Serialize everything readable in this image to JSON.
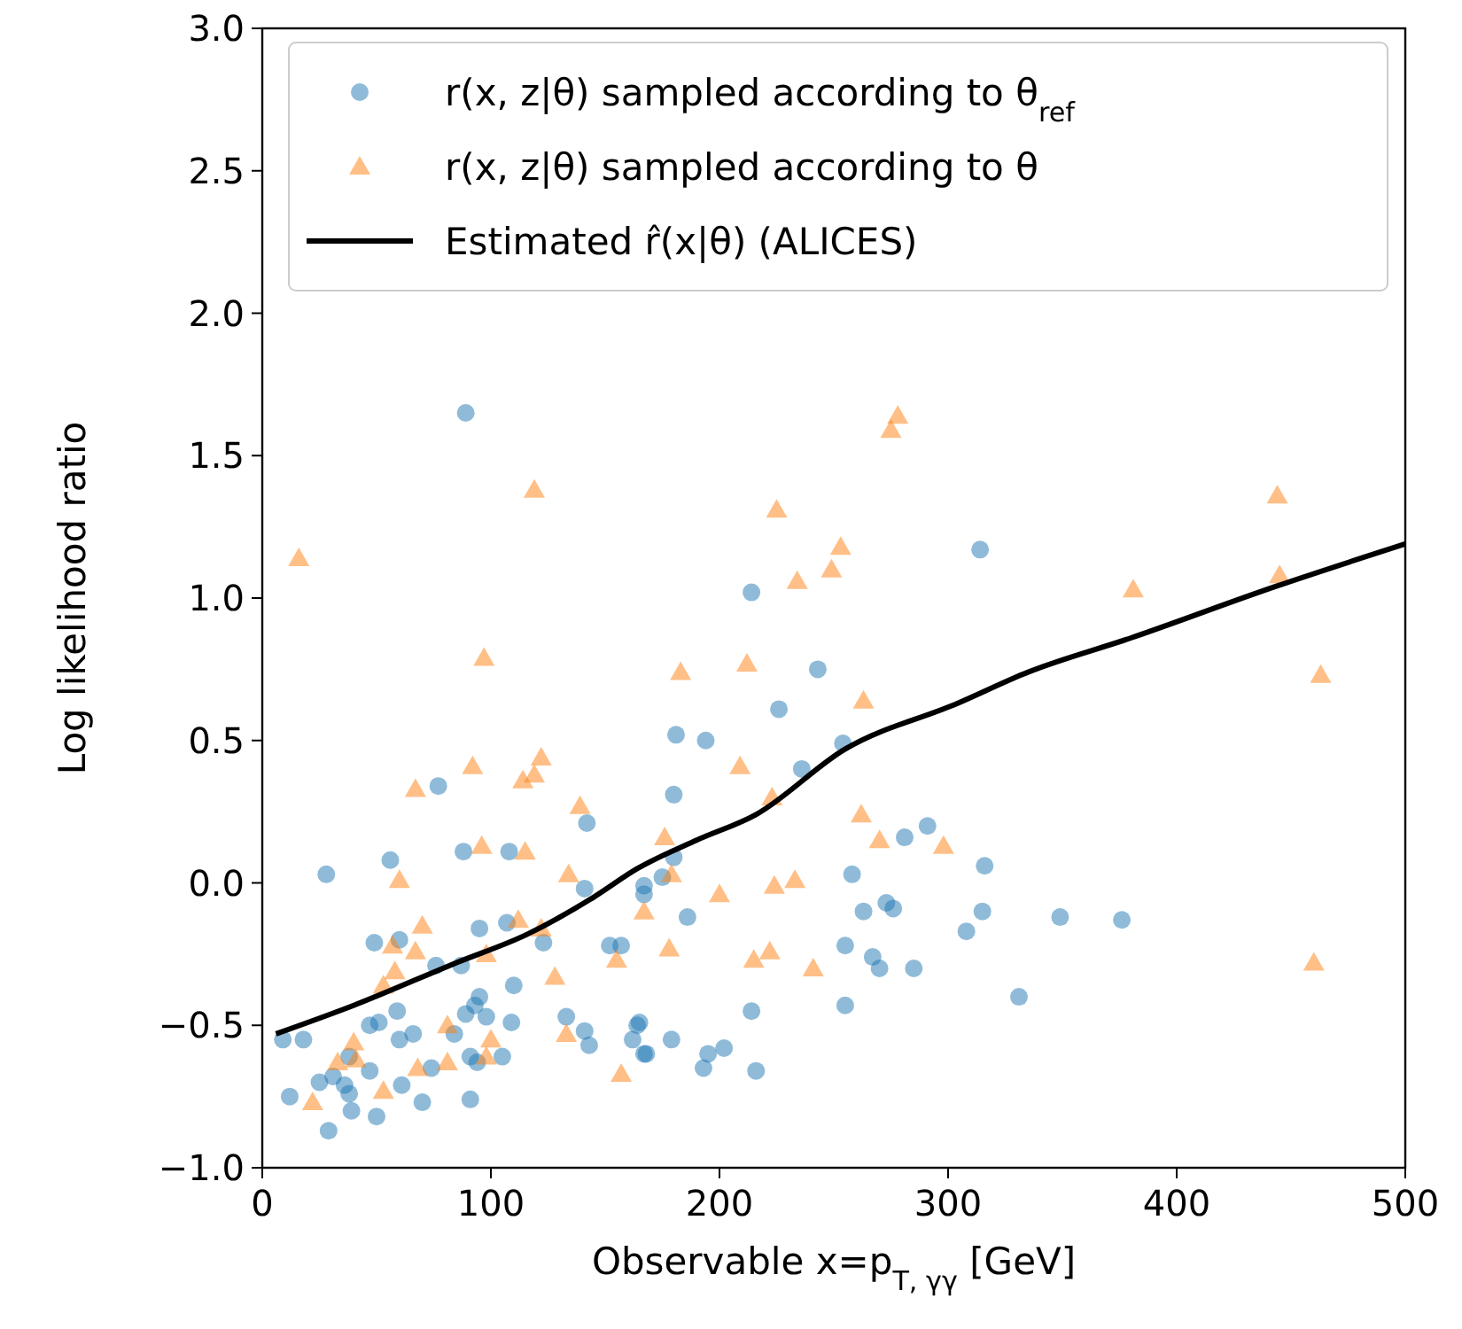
{
  "chart_data": {
    "type": "scatter",
    "xlabel": "Observable x=p$_{T, γγ}$  [GeV]",
    "ylabel": "Log likelihood ratio",
    "xlim": [
      0,
      500
    ],
    "ylim": [
      -1,
      3
    ],
    "xticks": [
      0,
      100,
      200,
      300,
      400,
      500
    ],
    "yticks": [
      {
        "value": -1,
        "label": "−1.0"
      },
      {
        "value": -0.5,
        "label": "−0.5"
      },
      {
        "value": 0,
        "label": "0.0"
      },
      {
        "value": 0.5,
        "label": "0.5"
      },
      {
        "value": 1,
        "label": "1.0"
      },
      {
        "value": 1.5,
        "label": "1.5"
      },
      {
        "value": 2,
        "label": "2.0"
      },
      {
        "value": 2.5,
        "label": "2.5"
      },
      {
        "value": 3,
        "label": "3.0"
      }
    ],
    "legend": "top left",
    "grid": false,
    "series": [
      {
        "name": "r(x, z|θ) sampled according to θ$_{ref}$",
        "color": "#1f77b4",
        "marker": "circle",
        "x": [
          89,
          77,
          142,
          56,
          28,
          88,
          108,
          141,
          49,
          60,
          95,
          107,
          123,
          152,
          157,
          76,
          87,
          110,
          95,
          93,
          89,
          98,
          109,
          133,
          47,
          51,
          59,
          84,
          9,
          18,
          66,
          60,
          141,
          143,
          164,
          162,
          167,
          91,
          94,
          105,
          74,
          38,
          47,
          31,
          25,
          36,
          38,
          61,
          12,
          70,
          91,
          39,
          50,
          29,
          214,
          314,
          243,
          226,
          181,
          194,
          254,
          236,
          180,
          180,
          175,
          167,
          167,
          186,
          281,
          291,
          316,
          258,
          263,
          273,
          276,
          315,
          308,
          255,
          267,
          270,
          285,
          331,
          214,
          255,
          165,
          179,
          168,
          195,
          202,
          193,
          216,
          349,
          376
        ],
        "values": [
          1.65,
          0.34,
          0.21,
          0.08,
          0.03,
          0.11,
          0.11,
          -0.02,
          -0.21,
          -0.2,
          -0.16,
          -0.14,
          -0.21,
          -0.22,
          -0.22,
          -0.29,
          -0.29,
          -0.36,
          -0.4,
          -0.43,
          -0.46,
          -0.47,
          -0.49,
          -0.47,
          -0.5,
          -0.49,
          -0.45,
          -0.53,
          -0.55,
          -0.55,
          -0.53,
          -0.55,
          -0.52,
          -0.57,
          -0.5,
          -0.55,
          -0.6,
          -0.61,
          -0.63,
          -0.61,
          -0.65,
          -0.61,
          -0.66,
          -0.68,
          -0.7,
          -0.71,
          -0.74,
          -0.71,
          -0.75,
          -0.77,
          -0.76,
          -0.8,
          -0.82,
          -0.87,
          1.02,
          1.17,
          0.75,
          0.61,
          0.52,
          0.5,
          0.49,
          0.4,
          0.31,
          0.09,
          0.02,
          -0.01,
          -0.04,
          -0.12,
          0.16,
          0.2,
          0.06,
          0.03,
          -0.1,
          -0.07,
          -0.09,
          -0.1,
          -0.17,
          -0.22,
          -0.26,
          -0.3,
          -0.3,
          -0.4,
          -0.45,
          -0.43,
          -0.49,
          -0.55,
          -0.6,
          -0.6,
          -0.58,
          -0.65,
          -0.66,
          -0.12,
          -0.13
        ]
      },
      {
        "name": "r(x, z|θ) sampled according to θ",
        "color": "#ff7f0e",
        "marker": "triangle",
        "x": [
          119,
          16,
          97,
          92,
          67,
          122,
          119,
          114,
          139,
          96,
          115,
          60,
          134,
          112,
          70,
          122,
          57,
          67,
          58,
          53,
          98,
          128,
          155,
          167,
          81,
          100,
          81,
          40,
          98,
          133,
          157,
          68,
          53,
          22,
          33,
          41,
          278,
          275,
          225,
          253,
          249,
          234,
          183,
          212,
          263,
          209,
          223,
          176,
          262,
          270,
          298,
          179,
          200,
          224,
          233,
          178,
          215,
          222,
          241,
          444,
          445,
          381,
          463,
          460
        ],
        "values": [
          1.38,
          1.14,
          0.79,
          0.41,
          0.33,
          0.44,
          0.38,
          0.36,
          0.27,
          0.13,
          0.11,
          0.01,
          0.03,
          -0.13,
          -0.15,
          -0.16,
          -0.22,
          -0.24,
          -0.31,
          -0.36,
          -0.25,
          -0.33,
          -0.27,
          -0.1,
          -0.5,
          -0.55,
          -0.63,
          -0.56,
          -0.61,
          -0.53,
          -0.67,
          -0.65,
          -0.73,
          -0.77,
          -0.63,
          -0.62,
          1.64,
          1.59,
          1.31,
          1.18,
          1.1,
          1.06,
          0.74,
          0.77,
          0.64,
          0.41,
          0.3,
          0.16,
          0.24,
          0.15,
          0.13,
          0.03,
          -0.04,
          -0.01,
          0.01,
          -0.23,
          -0.27,
          -0.24,
          -0.3,
          1.36,
          1.08,
          1.03,
          0.73,
          -0.28
        ]
      },
      {
        "name": "Estimated r̂(x|θ) (ALICES)",
        "type": "line",
        "color": "#000000",
        "marker": "none",
        "line_style": "solid",
        "x": [
          6,
          40,
          85,
          116,
          145,
          164,
          190,
          216,
          255,
          304,
          335,
          380,
          443,
          500
        ],
        "values": [
          -0.53,
          -0.43,
          -0.28,
          -0.18,
          -0.05,
          0.05,
          0.15,
          0.24,
          0.47,
          0.63,
          0.74,
          0.86,
          1.04,
          1.19
        ]
      }
    ]
  }
}
